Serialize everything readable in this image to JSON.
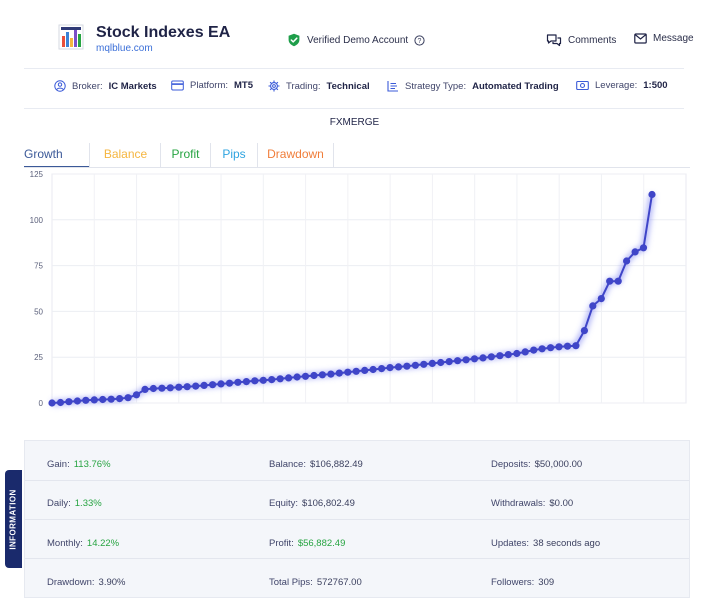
{
  "header": {
    "title": "Stock Indexes EA",
    "subtitle": "mqlblue.com",
    "verified_label": "Verified Demo Account",
    "comments_label": "Comments",
    "message_label": "Message"
  },
  "info_strip": {
    "broker_label": "Broker:",
    "broker_value": "IC Markets",
    "platform_label": "Platform:",
    "platform_value": "MT5",
    "trading_label": "Trading:",
    "trading_value": "Technical",
    "strategy_label": "Strategy Type:",
    "strategy_value": "Automated Trading",
    "leverage_label": "Leverage:",
    "leverage_value": "1:500"
  },
  "chart_title": "FXMERGE",
  "tabs": [
    {
      "label": "Growth",
      "color": "#3b5998",
      "active": true
    },
    {
      "label": "Balance",
      "color": "#f5b640"
    },
    {
      "label": "Profit",
      "color": "#27a442"
    },
    {
      "label": "Pips",
      "color": "#2fa4e0"
    },
    {
      "label": "Drawdown",
      "color": "#f07d3a"
    }
  ],
  "chart_data": {
    "type": "line",
    "xlabel": "",
    "ylabel": "",
    "ylim": [
      0,
      125
    ],
    "yticks": [
      "0",
      "25",
      "50",
      "75",
      "100",
      "125"
    ],
    "grid": true,
    "line_color": "#3f45c8",
    "series": [
      {
        "values": [
          0,
          0.3,
          0.7,
          1.1,
          1.5,
          1.7,
          1.9,
          2.1,
          2.4,
          2.9,
          4.5,
          7.4,
          7.9,
          8.1,
          8.3,
          8.6,
          8.9,
          9.2,
          9.6,
          10.0,
          10.4,
          10.8,
          11.3,
          11.7,
          12.1,
          12.4,
          12.8,
          13.2,
          13.7,
          14.2,
          14.6,
          15.0,
          15.4,
          15.8,
          16.3,
          16.8,
          17.3,
          17.8,
          18.3,
          18.8,
          19.3,
          19.7,
          20.1,
          20.6,
          21.1,
          21.6,
          22.1,
          22.6,
          23.1,
          23.6,
          24.1,
          24.6,
          25.2,
          25.8,
          26.4,
          27.0,
          27.9,
          28.9,
          29.6,
          30.2,
          30.7,
          31.0,
          31.3,
          39.5,
          53.0,
          57.0,
          66.5,
          66.5,
          77.5,
          82.5,
          84.7,
          113.8
        ]
      }
    ]
  },
  "information": {
    "side_label": "INFORMATION",
    "gain_label": "Gain:",
    "gain_value": "113.76%",
    "balance_label": "Balance:",
    "balance_value": "$106,882.49",
    "deposits_label": "Deposits:",
    "deposits_value": "$50,000.00",
    "daily_label": "Daily:",
    "daily_value": "1.33%",
    "equity_label": "Equity:",
    "equity_value": "$106,802.49",
    "withdrawals_label": "Withdrawals:",
    "withdrawals_value": "$0.00",
    "monthly_label": "Monthly:",
    "monthly_value": "14.22%",
    "profit_label": "Profit:",
    "profit_value": "$56,882.49",
    "updates_label": "Updates:",
    "updates_value": "38 seconds ago",
    "drawdown_label": "Drawdown:",
    "drawdown_value": "3.90%",
    "pips_label": "Total Pips:",
    "pips_value": "572767.00",
    "followers_label": "Followers:",
    "followers_value": "309"
  }
}
